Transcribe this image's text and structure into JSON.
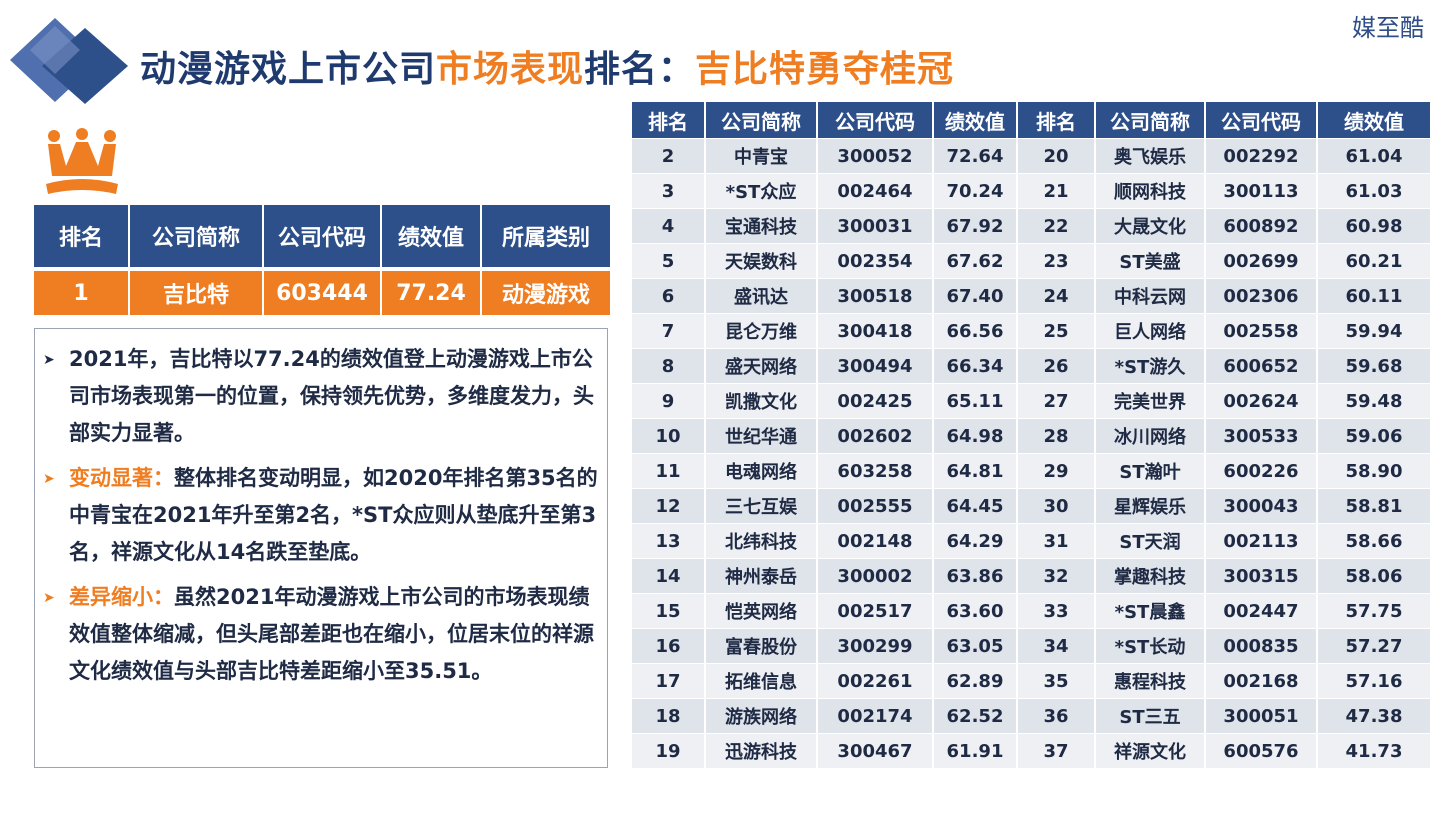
{
  "brand": "媒至酷",
  "title": {
    "part1": "动漫游戏上市公司",
    "part2": "市场表现",
    "part3": "排名：",
    "part4": "吉比特勇夺桂冠"
  },
  "colors": {
    "navy": "#2d4f8a",
    "orange": "#ef7d22",
    "row_light": "#eef0f4",
    "row_dark": "#dfe3ea"
  },
  "top_table": {
    "headers": [
      "排名",
      "公司简称",
      "公司代码",
      "绩效值",
      "所属类别"
    ],
    "row": [
      "1",
      "吉比特",
      "603444",
      "77.24",
      "动漫游戏"
    ]
  },
  "summary": {
    "p1": "2021年，吉比特以77.24的绩效值登上动漫游戏上市公司市场表现第一的位置，保持领先优势，多维度发力，头部实力显著。",
    "p2_lead": "变动显著：",
    "p2": "整体排名变动明显，如2020年排名第35名的中青宝在2021年升至第2名，*ST众应则从垫底升至第3名，祥源文化从14名跌至垫底。",
    "p3_lead": "差异缩小：",
    "p3": "虽然2021年动漫游戏上市公司的市场表现绩效值整体缩减，但头尾部差距也在缩小，位居末位的祥源文化绩效值与头部吉比特差距缩小至35.51。"
  },
  "rank_table": {
    "headers": [
      "排名",
      "公司简称",
      "公司代码",
      "绩效值",
      "排名",
      "公司简称",
      "公司代码",
      "绩效值"
    ],
    "rows": [
      [
        "2",
        "中青宝",
        "300052",
        "72.64",
        "20",
        "奥飞娱乐",
        "002292",
        "61.04"
      ],
      [
        "3",
        "*ST众应",
        "002464",
        "70.24",
        "21",
        "顺网科技",
        "300113",
        "61.03"
      ],
      [
        "4",
        "宝通科技",
        "300031",
        "67.92",
        "22",
        "大晟文化",
        "600892",
        "60.98"
      ],
      [
        "5",
        "天娱数科",
        "002354",
        "67.62",
        "23",
        "ST美盛",
        "002699",
        "60.21"
      ],
      [
        "6",
        "盛讯达",
        "300518",
        "67.40",
        "24",
        "中科云网",
        "002306",
        "60.11"
      ],
      [
        "7",
        "昆仑万维",
        "300418",
        "66.56",
        "25",
        "巨人网络",
        "002558",
        "59.94"
      ],
      [
        "8",
        "盛天网络",
        "300494",
        "66.34",
        "26",
        "*ST游久",
        "600652",
        "59.68"
      ],
      [
        "9",
        "凯撒文化",
        "002425",
        "65.11",
        "27",
        "完美世界",
        "002624",
        "59.48"
      ],
      [
        "10",
        "世纪华通",
        "002602",
        "64.98",
        "28",
        "冰川网络",
        "300533",
        "59.06"
      ],
      [
        "11",
        "电魂网络",
        "603258",
        "64.81",
        "29",
        "ST瀚叶",
        "600226",
        "58.90"
      ],
      [
        "12",
        "三七互娱",
        "002555",
        "64.45",
        "30",
        "星辉娱乐",
        "300043",
        "58.81"
      ],
      [
        "13",
        "北纬科技",
        "002148",
        "64.29",
        "31",
        "ST天润",
        "002113",
        "58.66"
      ],
      [
        "14",
        "神州泰岳",
        "300002",
        "63.86",
        "32",
        "掌趣科技",
        "300315",
        "58.06"
      ],
      [
        "15",
        "恺英网络",
        "002517",
        "63.60",
        "33",
        "*ST晨鑫",
        "002447",
        "57.75"
      ],
      [
        "16",
        "富春股份",
        "300299",
        "63.05",
        "34",
        "*ST长动",
        "000835",
        "57.27"
      ],
      [
        "17",
        "拓维信息",
        "002261",
        "62.89",
        "35",
        "惠程科技",
        "002168",
        "57.16"
      ],
      [
        "18",
        "游族网络",
        "002174",
        "62.52",
        "36",
        "ST三五",
        "300051",
        "47.38"
      ],
      [
        "19",
        "迅游科技",
        "300467",
        "61.91",
        "37",
        "祥源文化",
        "600576",
        "41.73"
      ]
    ]
  }
}
